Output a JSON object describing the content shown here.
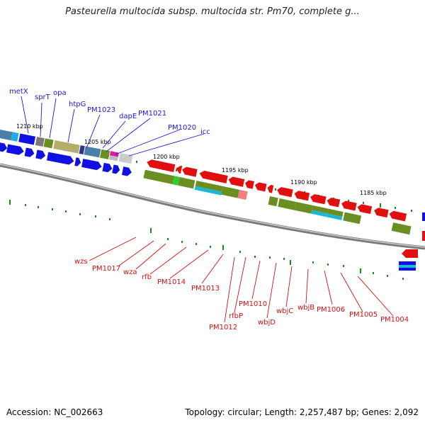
{
  "title": "Pasteurella multocida subsp. multocida str. Pm70, complete g...",
  "footer": {
    "accession": "Accession: NC_002663",
    "topology": "Topology: circular; Length: 2,257,487 bp; Genes: 2,092"
  },
  "colors": {
    "forward_strand": "#1010e0",
    "reverse_strand": "#e01010",
    "cds_olive": "#6b8e23",
    "backbone": "#8c8c8c",
    "ticks": "#1a8a1a"
  },
  "kbp_labels": [
    {
      "id": "kbp-1210",
      "text": "1210 kbp"
    },
    {
      "id": "kbp-1205",
      "text": "1205 kbp"
    },
    {
      "id": "kbp-1200",
      "text": "1200 kbp"
    },
    {
      "id": "kbp-1195",
      "text": "1195 kbp"
    },
    {
      "id": "kbp-1190",
      "text": "1190 kbp"
    },
    {
      "id": "kbp-1185",
      "text": "1185 kbp"
    }
  ],
  "top_genes": [
    "metX",
    "sprT",
    "opa",
    "htpG",
    "PM1023",
    "dapE",
    "PM1021",
    "PM1020",
    "icc"
  ],
  "bottom_genes": [
    "wzs",
    "PM1017",
    "wza",
    "rfb",
    "PM1014",
    "PM1013",
    "PM1012",
    "rfbP",
    "PM1010",
    "wbjD",
    "wbjC",
    "wbjB",
    "PM1006",
    "PM1005",
    "PM1004"
  ]
}
